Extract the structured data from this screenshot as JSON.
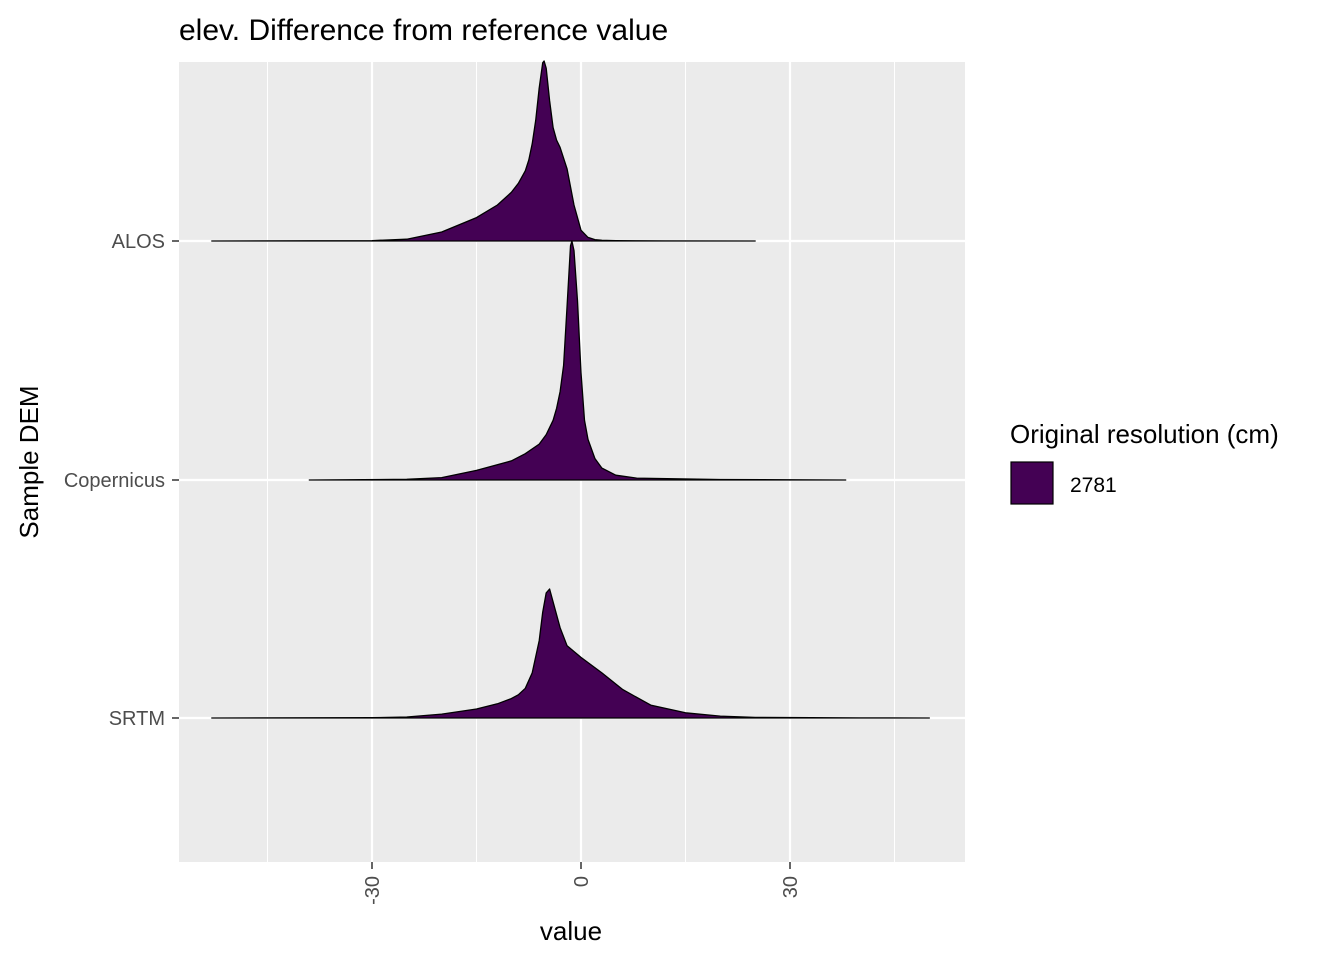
{
  "chart_data": {
    "type": "ridgeline",
    "title": "elev. Difference from reference value",
    "xlabel": "value",
    "ylabel": "Sample DEM",
    "xlim": [
      -58,
      55
    ],
    "x_ticks": [
      -30,
      0,
      30
    ],
    "x_tick_labels": [
      "-30",
      "0",
      "30"
    ],
    "x_minor_ticks": [
      -45,
      -15,
      15,
      45
    ],
    "categories": [
      "ALOS",
      "Copernicus",
      "SRTM"
    ],
    "grid": true,
    "fill_color": "#440154",
    "outline_color": "#000000",
    "panel_color": "#ebebeb",
    "legend": {
      "title": "Original resolution (cm)",
      "items": [
        {
          "label": "2781",
          "color": "#440154"
        }
      ],
      "placement": "right"
    },
    "series": [
      {
        "category": "ALOS",
        "x": [
          -53,
          -30,
          -25,
          -20,
          -15,
          -12,
          -10,
          -9,
          -8,
          -7.5,
          -7,
          -6.5,
          -6,
          -5.5,
          -5.3,
          -5,
          -4.5,
          -4,
          -3.5,
          -3,
          -2,
          -1,
          0,
          1,
          2,
          3,
          5,
          8,
          12,
          25
        ],
        "density": [
          0,
          0.002,
          0.01,
          0.05,
          0.13,
          0.2,
          0.27,
          0.32,
          0.39,
          0.45,
          0.54,
          0.67,
          0.85,
          0.99,
          1.0,
          0.96,
          0.78,
          0.63,
          0.56,
          0.52,
          0.4,
          0.2,
          0.06,
          0.02,
          0.008,
          0.004,
          0.002,
          0.001,
          0.0005,
          0
        ]
      },
      {
        "category": "Copernicus",
        "x": [
          -39,
          -25,
          -20,
          -15,
          -10,
          -8,
          -6,
          -5,
          -4,
          -3.5,
          -3,
          -2.5,
          -2,
          -1.5,
          -1.3,
          -1,
          -0.5,
          0,
          0.5,
          1,
          2,
          3,
          5,
          8,
          20,
          38
        ],
        "density": [
          0,
          0.003,
          0.01,
          0.04,
          0.08,
          0.11,
          0.15,
          0.19,
          0.25,
          0.3,
          0.37,
          0.48,
          0.73,
          0.98,
          1.0,
          0.96,
          0.75,
          0.45,
          0.25,
          0.17,
          0.09,
          0.05,
          0.02,
          0.008,
          0.002,
          0
        ]
      },
      {
        "category": "SRTM",
        "x": [
          -53,
          -30,
          -25,
          -20,
          -15,
          -12,
          -10,
          -9,
          -8,
          -7,
          -6,
          -5.5,
          -5,
          -4.5,
          -4,
          -3,
          -2,
          0,
          3,
          6,
          10,
          15,
          20,
          25,
          40,
          50
        ],
        "density": [
          0,
          0.002,
          0.008,
          0.03,
          0.07,
          0.11,
          0.15,
          0.18,
          0.23,
          0.35,
          0.6,
          0.82,
          0.97,
          1.0,
          0.9,
          0.7,
          0.56,
          0.47,
          0.35,
          0.22,
          0.1,
          0.04,
          0.015,
          0.005,
          0.001,
          0
        ]
      }
    ]
  }
}
